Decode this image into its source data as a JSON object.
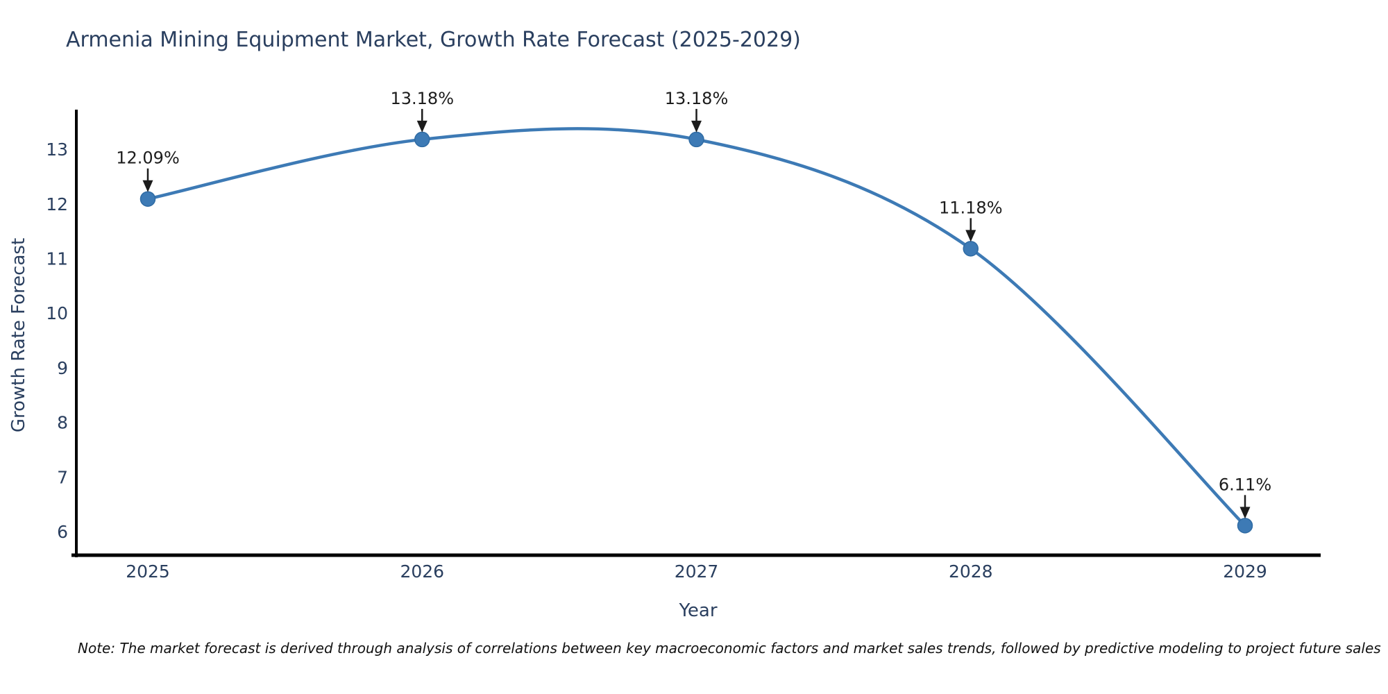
{
  "title": "Armenia Mining Equipment Market, Growth Rate Forecast (2025-2029)",
  "note": "Note: The market forecast is derived through analysis of correlations between key macroeconomic factors and market sales trends, followed by predictive modeling to project future sales",
  "chart_data": {
    "type": "line",
    "title": "Armenia Mining Equipment Market, Growth Rate Forecast (2025-2029)",
    "xlabel": "Year",
    "ylabel": "Growth Rate Forecast",
    "x": [
      "2025",
      "2026",
      "2027",
      "2028",
      "2029"
    ],
    "series": [
      {
        "name": "Growth Rate Forecast",
        "values": [
          12.09,
          13.18,
          13.18,
          11.18,
          6.11
        ],
        "point_labels": [
          "12.09%",
          "13.18%",
          "13.18%",
          "11.18%",
          "6.11%"
        ]
      }
    ],
    "y_ticks": [
      6,
      7,
      8,
      9,
      10,
      11,
      12,
      13
    ],
    "ylim": [
      5.5,
      13.7
    ],
    "line_shape": "spline",
    "grid": false,
    "legend": "none",
    "colors": {
      "line": "#3d7ab5",
      "marker": "#3d7ab5",
      "marker_edge": "#2f6ba4",
      "axis": "#000000",
      "frame_text": "#2a3f5f",
      "annotation": "#1c1c1c"
    }
  }
}
